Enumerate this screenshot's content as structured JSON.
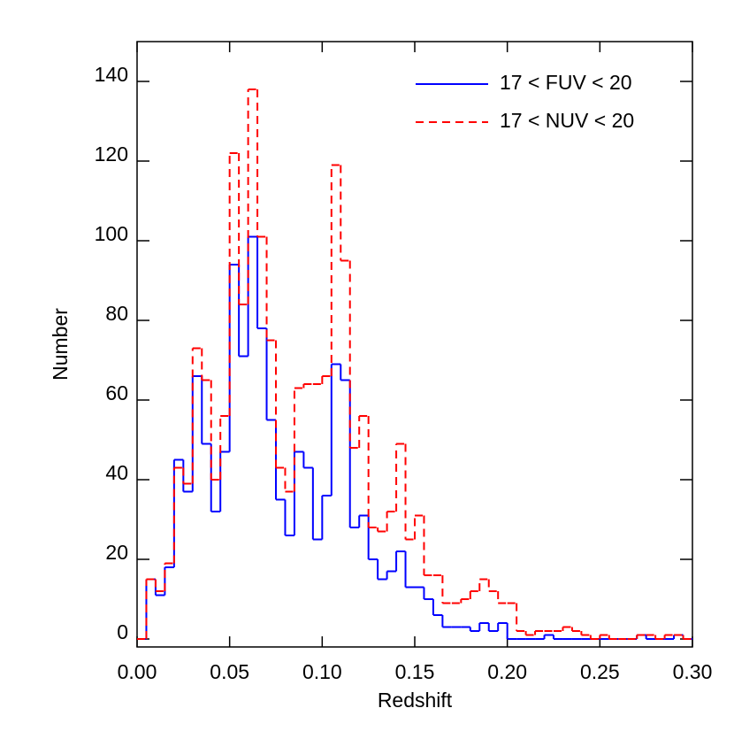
{
  "chart_data": {
    "type": "histogram",
    "xlabel": "Redshift",
    "ylabel": "Number",
    "bins": [
      0,
      0.005,
      0.01,
      0.015,
      0.02,
      0.025,
      0.03,
      0.035,
      0.04,
      0.045,
      0.05,
      0.055,
      0.06,
      0.065,
      0.07,
      0.075,
      0.08,
      0.085,
      0.09,
      0.095,
      0.1,
      0.105,
      0.11,
      0.115,
      0.12,
      0.125,
      0.13,
      0.135,
      0.14,
      0.145,
      0.15,
      0.155,
      0.16,
      0.165,
      0.17,
      0.175,
      0.18,
      0.185,
      0.19,
      0.195,
      0.2,
      0.205,
      0.21,
      0.215,
      0.22,
      0.225,
      0.23,
      0.235,
      0.24,
      0.245,
      0.25,
      0.255,
      0.26,
      0.265,
      0.27,
      0.275,
      0.28,
      0.285,
      0.29,
      0.295,
      0.3
    ],
    "series": [
      {
        "name": "17 < FUV < 20",
        "color": "#0000ff",
        "dash": false,
        "values": [
          0,
          15,
          11,
          18,
          45,
          37,
          66,
          49,
          32,
          47,
          94,
          71,
          101,
          78,
          55,
          35,
          26,
          47,
          43,
          25,
          36,
          69,
          65,
          28,
          31,
          20,
          15,
          17,
          22,
          13,
          13,
          10,
          6,
          3,
          3,
          3,
          2,
          4,
          2,
          4,
          0,
          0,
          0,
          0,
          1,
          0,
          0,
          0,
          0,
          0,
          0,
          0,
          0,
          0,
          1,
          0,
          0,
          0,
          1,
          0
        ]
      },
      {
        "name": "17 < NUV < 20",
        "color": "#ff0000",
        "dash": true,
        "values": [
          0,
          15,
          12,
          19,
          43,
          39,
          73,
          65,
          40,
          56,
          122,
          84,
          138,
          101,
          75,
          43,
          37,
          63,
          64,
          64,
          66,
          119,
          95,
          48,
          56,
          28,
          27,
          32,
          49,
          25,
          31,
          16,
          16,
          9,
          9,
          10,
          12,
          15,
          12,
          9,
          9,
          2,
          1,
          2,
          2,
          2,
          3,
          2,
          1,
          0,
          1,
          0,
          0,
          0,
          1,
          1,
          0,
          1,
          1,
          0
        ]
      }
    ],
    "xlim": [
      0,
      0.3
    ],
    "ylim": [
      -2,
      150
    ],
    "xticks": [
      {
        "value": 0,
        "label": "0.00"
      },
      {
        "value": 0.05,
        "label": "0.05"
      },
      {
        "value": 0.1,
        "label": "0.10"
      },
      {
        "value": 0.15,
        "label": "0.15"
      },
      {
        "value": 0.2,
        "label": "0.20"
      },
      {
        "value": 0.25,
        "label": "0.25"
      },
      {
        "value": 0.3,
        "label": "0.30"
      }
    ],
    "yticks": [
      0,
      20,
      40,
      60,
      80,
      100,
      120,
      140
    ],
    "legend": "upper right"
  }
}
